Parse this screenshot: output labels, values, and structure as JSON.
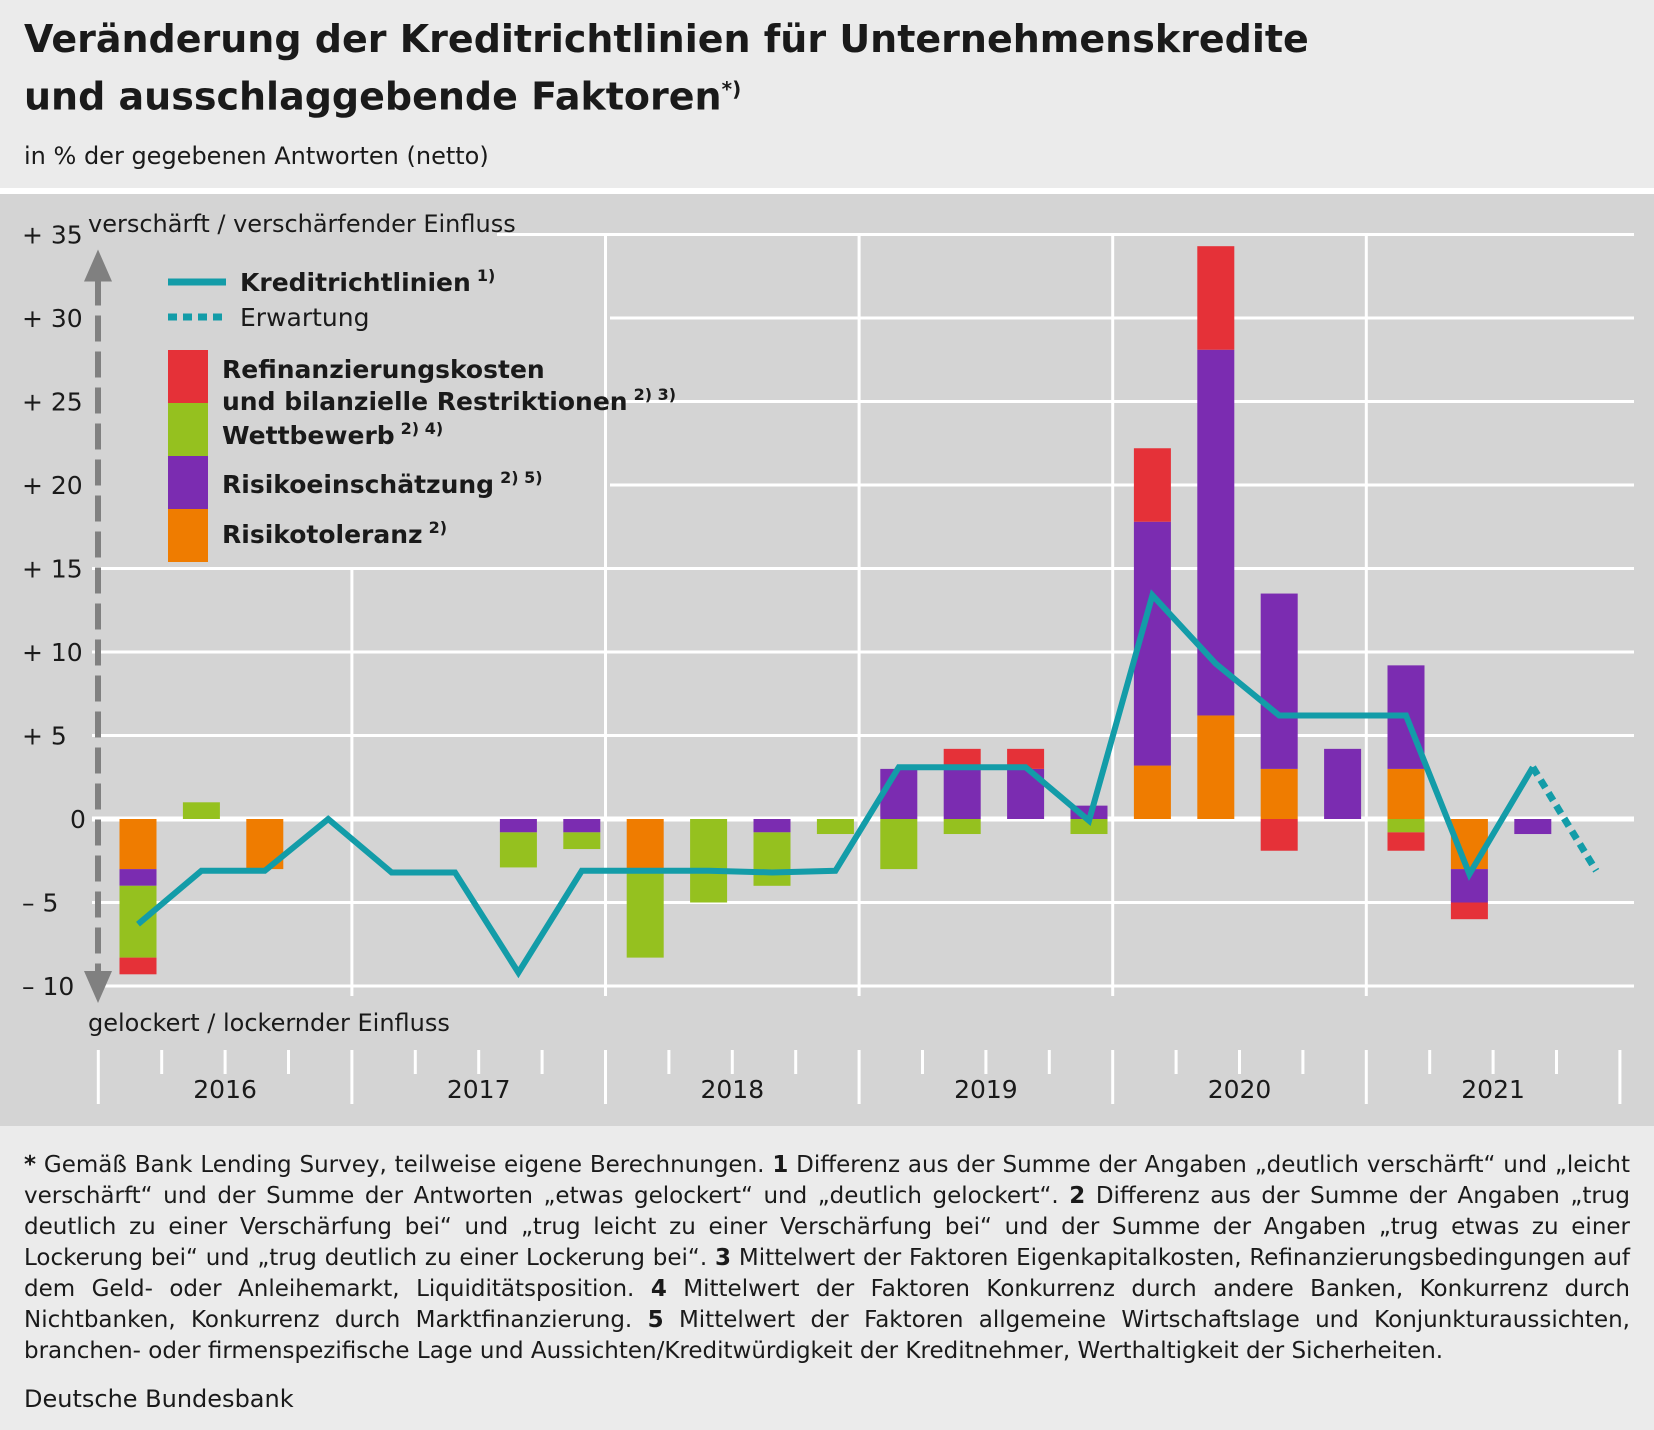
{
  "title_line1": "Veränderung der Kreditrichtlinien für Unternehmenskredite",
  "title_line2": "und ausschlaggebende Faktoren",
  "title_sup": "*)",
  "subtitle": "in % der gegebenen Antworten (netto)",
  "colors": {
    "line": "#139ca8",
    "refinanzierung": "#e53138",
    "wettbewerb": "#95c11f",
    "risikoeinschaetzung": "#7b2cb1",
    "risikotoleranz": "#ef7c00",
    "plot_bg": "#d4d4d4",
    "arrow": "#808080"
  },
  "chart_data": {
    "type": "bar",
    "stacked": true,
    "ylim": [
      -10,
      35
    ],
    "yticks": [
      {
        "value": 35,
        "label": "+ 35"
      },
      {
        "value": 30,
        "label": "+ 30"
      },
      {
        "value": 25,
        "label": "+ 25"
      },
      {
        "value": 20,
        "label": "+ 20"
      },
      {
        "value": 15,
        "label": "+ 15"
      },
      {
        "value": 10,
        "label": "+ 10"
      },
      {
        "value": 5,
        "label": "+  5"
      },
      {
        "value": 0,
        "label": "0"
      },
      {
        "value": -5,
        "label": "–  5"
      },
      {
        "value": -10,
        "label": "– 10"
      }
    ],
    "axis_label_top": "verschärft / verschärfender Einfluss",
    "axis_label_bottom": "gelockert / lockernder Einfluss",
    "years": [
      "2016",
      "2017",
      "2018",
      "2019",
      "2020",
      "2021"
    ],
    "quarters": [
      "2016Q1",
      "2016Q2",
      "2016Q3",
      "2016Q4",
      "2017Q1",
      "2017Q2",
      "2017Q3",
      "2017Q4",
      "2018Q1",
      "2018Q2",
      "2018Q3",
      "2018Q4",
      "2019Q1",
      "2019Q2",
      "2019Q3",
      "2019Q4",
      "2020Q1",
      "2020Q2",
      "2020Q3",
      "2020Q4",
      "2021Q1",
      "2021Q2",
      "2021Q3",
      "2021Q4"
    ],
    "series": [
      {
        "key": "risikotoleranz",
        "values": [
          -3,
          0,
          -3,
          0,
          0,
          0,
          0,
          0,
          -3,
          0,
          0,
          0,
          0,
          0,
          0,
          0,
          3.2,
          6.2,
          3,
          0,
          3,
          -3,
          0,
          0
        ]
      },
      {
        "key": "risikoeinschaetzung",
        "values": [
          -1,
          0,
          0,
          0,
          0,
          0,
          -0.8,
          -0.8,
          0,
          0,
          -0.8,
          0,
          3,
          3,
          3,
          0.8,
          14.6,
          21.9,
          10.5,
          4.2,
          6.2,
          -2,
          -0.9,
          0
        ]
      },
      {
        "key": "wettbewerb",
        "values": [
          -4.3,
          1,
          0,
          0,
          0,
          0,
          -2.1,
          -1,
          -5.3,
          -5,
          -3.2,
          -0.9,
          -3,
          -0.9,
          0,
          -0.9,
          0,
          0,
          0,
          0,
          -0.8,
          0,
          0,
          0
        ]
      },
      {
        "key": "refinanzierung",
        "values": [
          -1,
          0,
          0,
          0,
          0,
          0,
          0,
          0,
          0,
          0,
          0,
          0,
          0,
          1.2,
          1.2,
          0,
          4.4,
          6.2,
          -1.9,
          0,
          -1.1,
          -1,
          0,
          0
        ]
      }
    ],
    "line_series": {
      "key": "kreditrichtlinien",
      "values": [
        -6.3,
        -3.1,
        -3.1,
        0,
        -3.2,
        -3.2,
        -9.2,
        -3.1,
        -3.1,
        -3.1,
        -3.2,
        -3.1,
        3.1,
        3.1,
        3.1,
        -0.1,
        13.4,
        9.3,
        6.2,
        6.2,
        6.2,
        -3.3,
        3.1,
        null
      ]
    },
    "expectation_series": {
      "key": "erwartung",
      "values": [
        null,
        null,
        null,
        null,
        null,
        null,
        null,
        null,
        null,
        null,
        null,
        null,
        null,
        null,
        null,
        null,
        null,
        null,
        null,
        null,
        null,
        null,
        3.1,
        -3.1
      ]
    },
    "legend": [
      {
        "key": "kreditrichtlinien",
        "type": "line",
        "label": "Kreditrichtlinien",
        "sup": "1)",
        "bold": true
      },
      {
        "key": "erwartung",
        "type": "dashed",
        "label": "Erwartung",
        "sup": "",
        "bold": false
      },
      {
        "key": "refinanzierung",
        "type": "box",
        "label": "Refinanzierungskosten",
        "label2": "und bilanzielle Restriktionen",
        "sup": "2) 3)",
        "bold": true
      },
      {
        "key": "wettbewerb",
        "type": "box",
        "label": "Wettbewerb",
        "sup": "2) 4)",
        "bold": true
      },
      {
        "key": "risikoeinschaetzung",
        "type": "box",
        "label": "Risikoeinschätzung",
        "sup": "2) 5)",
        "bold": true
      },
      {
        "key": "risikotoleranz",
        "type": "box",
        "label": "Risikotoleranz",
        "sup": "2)",
        "bold": true
      }
    ]
  },
  "footnotes": {
    "star_mark": "*",
    "star_text": " Gemäß Bank Lending Survey, teilweise eigene Berechnungen. ",
    "n1_mark": "1",
    "n1_text": " Differenz aus der Summe der Angaben „deutlich verschärft“ und „leicht verschärft“ und der Summe der Antworten „etwas gelockert“ und „deutlich gelockert“. ",
    "n2_mark": "2",
    "n2_text": " Differenz aus der Summe der Angaben „trug deutlich zu einer Verschärfung bei“ und „trug leicht zu einer Verschärfung bei“ und der Summe der Angaben „trug etwas zu einer Lockerung bei“ und „trug deutlich zu einer Lockerung bei“. ",
    "n3_mark": "3",
    "n3_text": " Mittelwert der Faktoren Eigenkapitalkosten, Refinanzierungsbedingungen auf dem Geld- oder Anleihemarkt, Liquiditätsposition. ",
    "n4_mark": "4",
    "n4_text": " Mittelwert der Faktoren Konkurrenz durch andere Banken, Konkurrenz durch Nichtbanken, Konkurrenz durch Marktfinanzierung. ",
    "n5_mark": "5",
    "n5_text": " Mittelwert der Faktoren allgemeine Wirtschaftslage und Konjunkturaussichten, branchen- oder firmenspezifische Lage und Aussichten/Kreditwürdigkeit der Kreditnehmer, Werthaltigkeit der Sicherheiten."
  },
  "source": "Deutsche Bundesbank"
}
